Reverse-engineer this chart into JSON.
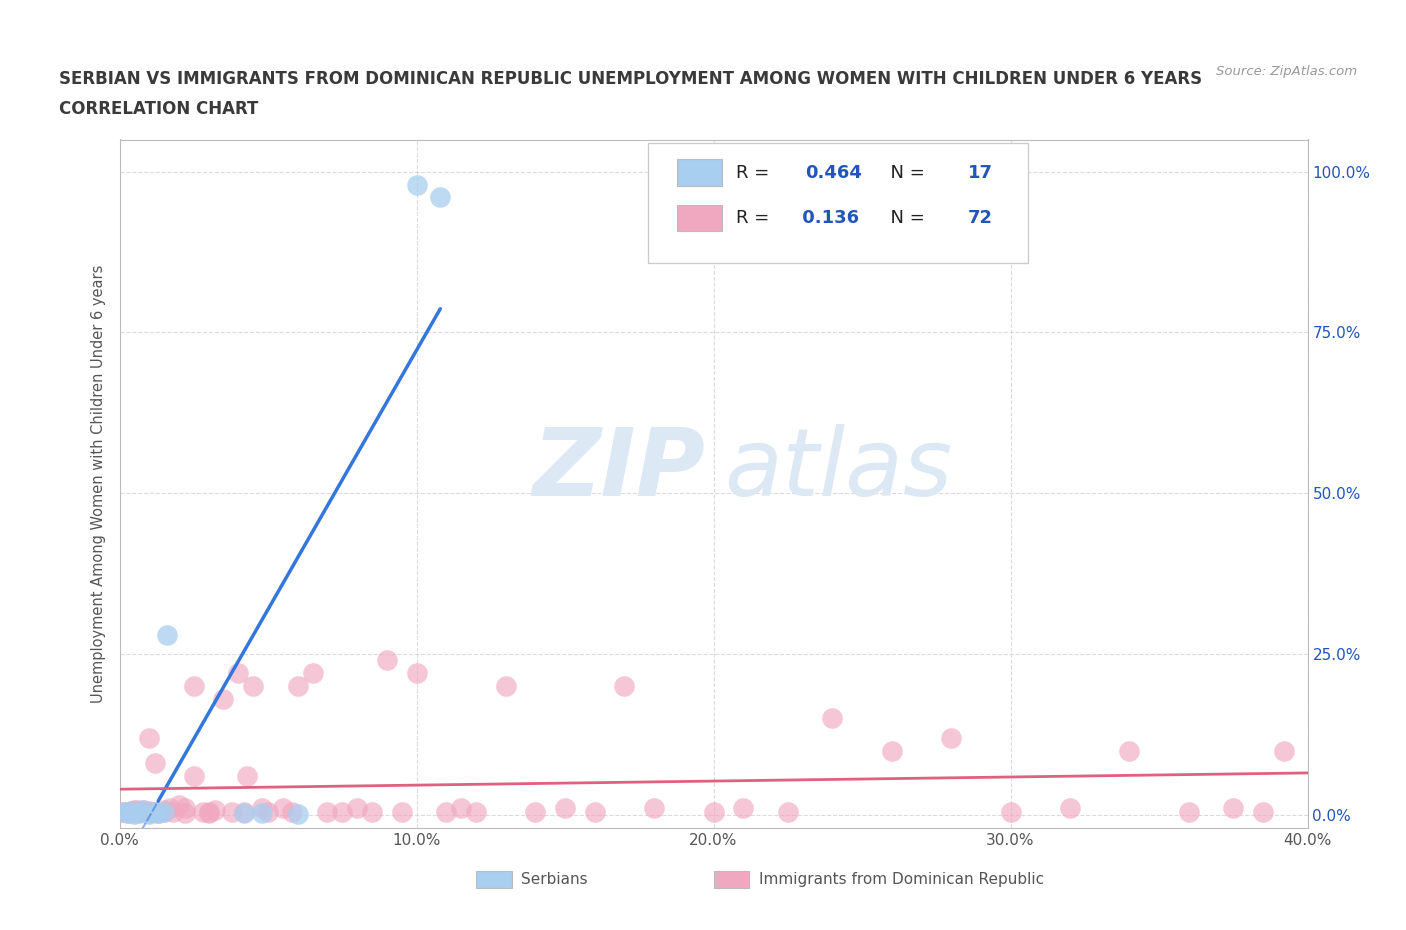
{
  "title_line1": "SERBIAN VS IMMIGRANTS FROM DOMINICAN REPUBLIC UNEMPLOYMENT AMONG WOMEN WITH CHILDREN UNDER 6 YEARS",
  "title_line2": "CORRELATION CHART",
  "source": "Source: ZipAtlas.com",
  "ylabel": "Unemployment Among Women with Children Under 6 years",
  "xlim": [
    0.0,
    0.4
  ],
  "ylim": [
    -0.02,
    1.05
  ],
  "xticks": [
    0.0,
    0.1,
    0.2,
    0.3,
    0.4
  ],
  "xtick_labels": [
    "0.0%",
    "10.0%",
    "20.0%",
    "30.0%",
    "40.0%"
  ],
  "yticks": [
    0.0,
    0.25,
    0.5,
    0.75,
    1.0
  ],
  "right_ytick_labels": [
    "0.0%",
    "25.0%",
    "50.0%",
    "75.0%",
    "100.0%"
  ],
  "legend_serbian_R": "0.464",
  "legend_serbian_N": "17",
  "legend_dr_R": "0.136",
  "legend_dr_N": "72",
  "serbian_color": "#a8cef0",
  "dr_color": "#f0a8c0",
  "serbian_line_color": "#3377dd",
  "dr_line_color": "#e06080",
  "background_color": "#ffffff",
  "grid_color": "#cccccc",
  "title_color": "#3a3a3a",
  "axis_color": "#555555",
  "watermark_color": "#dde8f5",
  "serbian_x": [
    0.002,
    0.003,
    0.004,
    0.005,
    0.005,
    0.007,
    0.008,
    0.01,
    0.012,
    0.013,
    0.015,
    0.016,
    0.042,
    0.048,
    0.06,
    0.1,
    0.108
  ],
  "serbian_y": [
    0.005,
    0.003,
    0.004,
    0.002,
    0.005,
    0.003,
    0.007,
    0.002,
    0.004,
    0.003,
    0.005,
    0.28,
    0.003,
    0.003,
    0.002,
    0.98,
    0.96
  ],
  "dr_x": [
    0.001,
    0.002,
    0.003,
    0.004,
    0.004,
    0.005,
    0.005,
    0.006,
    0.007,
    0.008,
    0.008,
    0.01,
    0.01,
    0.011,
    0.012,
    0.013,
    0.015,
    0.015,
    0.017,
    0.018,
    0.02,
    0.022,
    0.022,
    0.025,
    0.025,
    0.028,
    0.03,
    0.03,
    0.032,
    0.035,
    0.038,
    0.04,
    0.042,
    0.043,
    0.045,
    0.048,
    0.05,
    0.055,
    0.058,
    0.06,
    0.065,
    0.07,
    0.075,
    0.08,
    0.085,
    0.09,
    0.095,
    0.1,
    0.11,
    0.115,
    0.12,
    0.13,
    0.14,
    0.15,
    0.16,
    0.17,
    0.18,
    0.2,
    0.21,
    0.225,
    0.24,
    0.26,
    0.28,
    0.3,
    0.32,
    0.34,
    0.36,
    0.375,
    0.385,
    0.392,
    0.01,
    0.012
  ],
  "dr_y": [
    0.004,
    0.005,
    0.003,
    0.004,
    0.006,
    0.007,
    0.003,
    0.008,
    0.005,
    0.004,
    0.007,
    0.006,
    0.003,
    0.005,
    0.004,
    0.003,
    0.008,
    0.005,
    0.01,
    0.004,
    0.015,
    0.01,
    0.003,
    0.2,
    0.06,
    0.005,
    0.003,
    0.005,
    0.008,
    0.18,
    0.005,
    0.22,
    0.005,
    0.06,
    0.2,
    0.01,
    0.005,
    0.01,
    0.005,
    0.2,
    0.22,
    0.005,
    0.005,
    0.01,
    0.005,
    0.24,
    0.005,
    0.22,
    0.005,
    0.01,
    0.005,
    0.2,
    0.005,
    0.01,
    0.005,
    0.2,
    0.01,
    0.005,
    0.01,
    0.005,
    0.15,
    0.1,
    0.12,
    0.005,
    0.01,
    0.1,
    0.005,
    0.01,
    0.005,
    0.1,
    0.12,
    0.08
  ]
}
